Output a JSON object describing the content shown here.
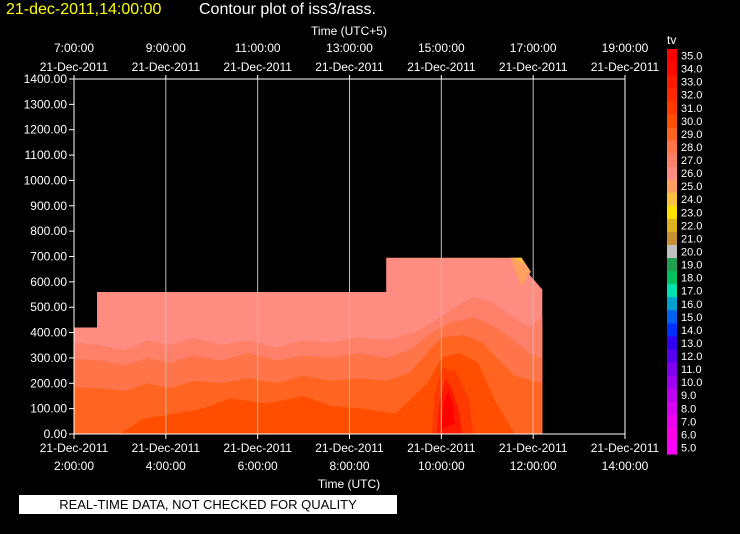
{
  "header": {
    "date_label": "21-dec-2011,14:00:00",
    "plot_title": "Contour plot of iss3/rass."
  },
  "footer": {
    "quality_banner": "REAL-TIME DATA, NOT CHECKED FOR QUALITY"
  },
  "chart_data": {
    "type": "heatmap",
    "title": "Contour plot of iss3/rass.",
    "x_top_label": "Time (UTC+5)",
    "x_bottom_label": "Time (UTC)",
    "x_bottom_range_hours": [
      2,
      14
    ],
    "y_range": [
      0,
      1400
    ],
    "x_top_ticks": [
      {
        "time": "7:00:00",
        "date": "21-Dec-2011"
      },
      {
        "time": "9:00:00",
        "date": "21-Dec-2011"
      },
      {
        "time": "11:00:00",
        "date": "21-Dec-2011"
      },
      {
        "time": "13:00:00",
        "date": "21-Dec-2011"
      },
      {
        "time": "15:00:00",
        "date": "21-Dec-2011"
      },
      {
        "time": "17:00:00",
        "date": "21-Dec-2011"
      },
      {
        "time": "19:00:00",
        "date": "21-Dec-2011"
      }
    ],
    "x_bottom_ticks": [
      {
        "time": "2:00:00",
        "date": "21-Dec-2011"
      },
      {
        "time": "4:00:00",
        "date": "21-Dec-2011"
      },
      {
        "time": "6:00:00",
        "date": "21-Dec-2011"
      },
      {
        "time": "8:00:00",
        "date": "21-Dec-2011"
      },
      {
        "time": "10:00:00",
        "date": "21-Dec-2011"
      },
      {
        "time": "12:00:00",
        "date": "21-Dec-2011"
      },
      {
        "time": "14:00:00",
        "date": "21-Dec-2011"
      }
    ],
    "y_ticks": [
      "0.00",
      "100.00",
      "200.00",
      "300.00",
      "400.00",
      "500.00",
      "600.00",
      "700.00",
      "800.00",
      "900.00",
      "1000.00",
      "1100.00",
      "1200.00",
      "1300.00",
      "1400.00"
    ],
    "grid": true,
    "legend": {
      "label": "tv",
      "placement": "right",
      "levels": [
        {
          "value": "35.0",
          "color": "#ff0000"
        },
        {
          "value": "34.0",
          "color": "#ff0a00"
        },
        {
          "value": "33.0",
          "color": "#ff1a00"
        },
        {
          "value": "32.0",
          "color": "#ff2800"
        },
        {
          "value": "31.0",
          "color": "#ff3a00"
        },
        {
          "value": "30.0",
          "color": "#ff4e00"
        },
        {
          "value": "29.0",
          "color": "#ff6420"
        },
        {
          "value": "28.0",
          "color": "#ff7448"
        },
        {
          "value": "27.0",
          "color": "#ff8068"
        },
        {
          "value": "26.0",
          "color": "#ff8c80"
        },
        {
          "value": "25.0",
          "color": "#ffa060"
        },
        {
          "value": "24.0",
          "color": "#ffc040"
        },
        {
          "value": "23.0",
          "color": "#ffe000"
        },
        {
          "value": "22.0",
          "color": "#e0b020"
        },
        {
          "value": "21.0",
          "color": "#c89030"
        },
        {
          "value": "20.0",
          "color": "#c0c0c0"
        },
        {
          "value": "19.0",
          "color": "#20a050"
        },
        {
          "value": "18.0",
          "color": "#00c060"
        },
        {
          "value": "17.0",
          "color": "#00e0b0"
        },
        {
          "value": "16.0",
          "color": "#00a0d0"
        },
        {
          "value": "15.0",
          "color": "#0060f0"
        },
        {
          "value": "14.0",
          "color": "#0030ff"
        },
        {
          "value": "13.0",
          "color": "#3000f0"
        },
        {
          "value": "12.0",
          "color": "#5800f0"
        },
        {
          "value": "11.0",
          "color": "#8000f0"
        },
        {
          "value": "10.0",
          "color": "#a000f0"
        },
        {
          "value": "9.0",
          "color": "#c000f0"
        },
        {
          "value": "8.0",
          "color": "#d800f0"
        },
        {
          "value": "7.0",
          "color": "#ee00f0"
        },
        {
          "value": "6.0",
          "color": "#ff00e8"
        },
        {
          "value": "5.0",
          "color": "#ff00ff"
        }
      ]
    },
    "contours": [
      {
        "level": 26,
        "color": "#ff8c80",
        "points": [
          [
            2.0,
            420
          ],
          [
            2.5,
            420
          ],
          [
            2.5,
            560
          ],
          [
            8.8,
            560
          ],
          [
            8.8,
            695
          ],
          [
            11.6,
            695
          ],
          [
            12.2,
            570
          ],
          [
            12.2,
            0
          ],
          [
            2.0,
            0
          ]
        ]
      },
      {
        "level": 25,
        "color": "#ffa060",
        "points": [
          [
            11.5,
            695
          ],
          [
            11.75,
            695
          ],
          [
            11.95,
            640
          ],
          [
            11.75,
            580
          ]
        ]
      },
      {
        "level": 24,
        "color": "#ffc040",
        "points": [
          [
            11.6,
            695
          ],
          [
            11.75,
            695
          ],
          [
            11.78,
            670
          ],
          [
            11.7,
            680
          ]
        ]
      },
      {
        "level": 27,
        "color": "#ff8068",
        "points": [
          [
            2.0,
            360
          ],
          [
            2.6,
            350
          ],
          [
            3.1,
            330
          ],
          [
            3.6,
            370
          ],
          [
            4.1,
            350
          ],
          [
            4.6,
            380
          ],
          [
            5.2,
            350
          ],
          [
            5.8,
            370
          ],
          [
            6.4,
            340
          ],
          [
            7.0,
            370
          ],
          [
            7.6,
            360
          ],
          [
            8.2,
            380
          ],
          [
            8.8,
            370
          ],
          [
            9.4,
            400
          ],
          [
            9.8,
            440
          ],
          [
            10.3,
            500
          ],
          [
            10.7,
            540
          ],
          [
            11.1,
            520
          ],
          [
            11.5,
            470
          ],
          [
            11.9,
            420
          ],
          [
            12.2,
            460
          ],
          [
            12.2,
            0
          ],
          [
            2.0,
            0
          ]
        ]
      },
      {
        "level": 28,
        "color": "#ff7448",
        "points": [
          [
            2.0,
            295
          ],
          [
            2.6,
            290
          ],
          [
            3.1,
            270
          ],
          [
            3.6,
            300
          ],
          [
            4.1,
            280
          ],
          [
            4.6,
            310
          ],
          [
            5.2,
            290
          ],
          [
            5.8,
            320
          ],
          [
            6.4,
            290
          ],
          [
            7.0,
            310
          ],
          [
            7.6,
            300
          ],
          [
            8.2,
            320
          ],
          [
            8.8,
            300
          ],
          [
            9.3,
            330
          ],
          [
            9.8,
            400
          ],
          [
            10.2,
            440
          ],
          [
            10.7,
            460
          ],
          [
            11.1,
            430
          ],
          [
            11.5,
            380
          ],
          [
            11.9,
            320
          ],
          [
            12.2,
            300
          ],
          [
            12.2,
            0
          ],
          [
            2.0,
            0
          ]
        ]
      },
      {
        "level": 29,
        "color": "#ff6420",
        "points": [
          [
            2.0,
            185
          ],
          [
            2.6,
            180
          ],
          [
            3.1,
            170
          ],
          [
            3.6,
            200
          ],
          [
            4.1,
            180
          ],
          [
            4.6,
            210
          ],
          [
            5.2,
            200
          ],
          [
            5.8,
            220
          ],
          [
            6.4,
            200
          ],
          [
            7.0,
            230
          ],
          [
            7.6,
            210
          ],
          [
            8.2,
            220
          ],
          [
            8.8,
            210
          ],
          [
            9.3,
            240
          ],
          [
            9.7,
            320
          ],
          [
            10.0,
            380
          ],
          [
            10.5,
            390
          ],
          [
            10.9,
            360
          ],
          [
            11.2,
            300
          ],
          [
            11.6,
            230
          ],
          [
            12.2,
            200
          ],
          [
            12.2,
            0
          ],
          [
            2.0,
            0
          ]
        ]
      },
      {
        "level": 30,
        "color": "#ff4e00",
        "points": [
          [
            3.0,
            0
          ],
          [
            3.5,
            60
          ],
          [
            4.2,
            80
          ],
          [
            4.8,
            100
          ],
          [
            5.4,
            140
          ],
          [
            6.2,
            120
          ],
          [
            7.0,
            150
          ],
          [
            7.6,
            110
          ],
          [
            8.3,
            100
          ],
          [
            9.0,
            80
          ],
          [
            9.7,
            200
          ],
          [
            10.0,
            300
          ],
          [
            10.4,
            320
          ],
          [
            10.8,
            280
          ],
          [
            11.2,
            120
          ],
          [
            11.6,
            0
          ]
        ]
      },
      {
        "level": 31,
        "color": "#ff3a00",
        "points": [
          [
            9.8,
            0
          ],
          [
            9.85,
            150
          ],
          [
            10.0,
            260
          ],
          [
            10.3,
            250
          ],
          [
            10.6,
            140
          ],
          [
            10.7,
            0
          ]
        ]
      },
      {
        "level": 33,
        "color": "#ff1a00",
        "points": [
          [
            9.9,
            0
          ],
          [
            9.95,
            120
          ],
          [
            10.1,
            220
          ],
          [
            10.25,
            170
          ],
          [
            10.4,
            80
          ],
          [
            10.45,
            0
          ]
        ]
      },
      {
        "level": 35,
        "color": "#ff0000",
        "points": [
          [
            10.0,
            20
          ],
          [
            10.05,
            120
          ],
          [
            10.15,
            170
          ],
          [
            10.25,
            120
          ],
          [
            10.3,
            40
          ]
        ]
      }
    ]
  }
}
